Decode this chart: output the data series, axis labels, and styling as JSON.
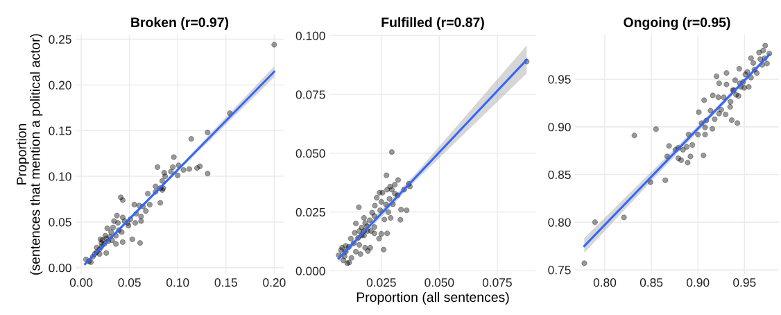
{
  "chart_data": [
    {
      "type": "scatter",
      "title": "Broken (r=0.97)",
      "ylabel": "Proportion\n(sentences that mention a political actor)",
      "grid": true,
      "tick_labels": true,
      "xlim": [
        -0.0058,
        0.2098
      ],
      "ylim": [
        -0.007,
        0.255
      ],
      "xticks": [
        {
          "value": 0,
          "label": "0.00"
        },
        {
          "value": 0.05,
          "label": "0.05"
        },
        {
          "value": 0.1,
          "label": "0.10"
        },
        {
          "value": 0.15,
          "label": "0.15"
        },
        {
          "value": 0.2,
          "label": "0.20"
        }
      ],
      "yticks": [
        {
          "value": 0,
          "label": "0.00"
        },
        {
          "value": 0.05,
          "label": "0.05"
        },
        {
          "value": 0.1,
          "label": "0.10"
        },
        {
          "value": 0.15,
          "label": "0.15"
        },
        {
          "value": 0.2,
          "label": "0.20"
        },
        {
          "value": 0.25,
          "label": "0.25"
        }
      ],
      "series": [
        {
          "color": "#000000",
          "x": [
            0.2,
            0.154,
            0.131,
            0.114,
            0.131,
            0.123,
            0.12,
            0.112,
            0.106,
            0.101,
            0.096,
            0.095,
            0.093,
            0.1,
            0.086,
            0.079,
            0.087,
            0.084,
            0.077,
            0.082,
            0.085,
            0.077,
            0.084,
            0.069,
            0.082,
            0.071,
            0.064,
            0.067,
            0.06,
            0.055,
            0.041,
            0.043,
            0.057,
            0.062,
            0.062,
            0.056,
            0.051,
            0.048,
            0.043,
            0.038,
            0.053,
            0.061,
            0.043,
            0.036,
            0.027,
            0.031,
            0.033,
            0.039,
            0.042,
            0.036,
            0.026,
            0.022,
            0.03,
            0.021,
            0.019,
            0.016,
            0.014,
            0.026,
            0.019,
            0.012,
            0.005,
            0.01,
            0.008,
            0.024,
            0.021,
            0.025,
            0.028,
            0.032,
            0.016,
            0.02,
            0.049,
            0.045,
            0.037,
            0.034
          ],
          "values": [
            0.244,
            0.169,
            0.148,
            0.141,
            0.103,
            0.111,
            0.109,
            0.108,
            0.107,
            0.112,
            0.121,
            0.11,
            0.105,
            0.101,
            0.104,
            0.11,
            0.1,
            0.095,
            0.089,
            0.087,
            0.087,
            0.083,
            0.085,
            0.081,
            0.071,
            0.069,
            0.067,
            0.062,
            0.068,
            0.069,
            0.077,
            0.074,
            0.059,
            0.056,
            0.051,
            0.049,
            0.053,
            0.049,
            0.055,
            0.049,
            0.031,
            0.027,
            0.028,
            0.026,
            0.043,
            0.039,
            0.044,
            0.041,
            0.039,
            0.035,
            0.032,
            0.03,
            0.034,
            0.023,
            0.02,
            0.017,
            0.015,
            0.016,
            0.015,
            0.012,
            0.009,
            0.006,
            0.007,
            0.026,
            0.027,
            0.035,
            0.029,
            0.03,
            0.022,
            0.031,
            0.046,
            0.051,
            0.057,
            0.051
          ]
        },
        {
          "type": "line",
          "color": "#3366ff",
          "x": [
            0.004,
            0.1,
            0.2
          ],
          "values": [
            0.004,
            0.1071,
            0.2145
          ],
          "lower": [
            0.002,
            0.1051,
            0.2085
          ],
          "upper": [
            0.006,
            0.1091,
            0.2205
          ]
        }
      ]
    },
    {
      "type": "scatter",
      "title": "Fulfilled (r=0.87)",
      "xlabel": "Proportion (all sentences)",
      "grid": true,
      "tick_labels": true,
      "xlim": [
        0.0026,
        0.0918
      ],
      "ylim": [
        -0.0014,
        0.1004
      ],
      "xticks": [
        {
          "value": 0.025,
          "label": "0.025"
        },
        {
          "value": 0.05,
          "label": "0.050"
        },
        {
          "value": 0.075,
          "label": "0.075"
        }
      ],
      "yticks": [
        {
          "value": 0,
          "label": "0.000"
        },
        {
          "value": 0.025,
          "label": "0.025"
        },
        {
          "value": 0.05,
          "label": "0.050"
        },
        {
          "value": 0.075,
          "label": "0.075"
        },
        {
          "value": 0.1,
          "label": "0.100"
        }
      ],
      "series": [
        {
          "color": "#000000",
          "x": [
            0.0877,
            0.0295,
            0.0272,
            0.0322,
            0.0308,
            0.0368,
            0.0373,
            0.0348,
            0.0288,
            0.0275,
            0.0295,
            0.0242,
            0.0255,
            0.0308,
            0.032,
            0.023,
            0.0285,
            0.025,
            0.027,
            0.03,
            0.0222,
            0.0153,
            0.0335,
            0.0359,
            0.0332,
            0.029,
            0.028,
            0.0245,
            0.021,
            0.022,
            0.0263,
            0.014,
            0.0175,
            0.02,
            0.018,
            0.0188,
            0.0165,
            0.0155,
            0.0135,
            0.0175,
            0.019,
            0.022,
            0.025,
            0.0275,
            0.024,
            0.0165,
            0.015,
            0.0118,
            0.0131,
            0.0155,
            0.018,
            0.0202,
            0.0192,
            0.026,
            0.014,
            0.016,
            0.0096,
            0.0109,
            0.0081,
            0.0076,
            0.0096,
            0.0066,
            0.0091,
            0.0086,
            0.0111,
            0.0103,
            0.0121,
            0.022,
            0.0205,
            0.0175
          ],
          "values": [
            0.089,
            0.0505,
            0.0406,
            0.0386,
            0.0366,
            0.037,
            0.0358,
            0.0345,
            0.0358,
            0.0345,
            0.0345,
            0.0332,
            0.0332,
            0.0328,
            0.0321,
            0.0311,
            0.0306,
            0.0293,
            0.0282,
            0.0283,
            0.0277,
            0.027,
            0.026,
            0.0257,
            0.0217,
            0.0225,
            0.0249,
            0.0257,
            0.0247,
            0.0233,
            0.0218,
            0.0201,
            0.0225,
            0.0215,
            0.0203,
            0.0189,
            0.0184,
            0.0169,
            0.0161,
            0.0169,
            0.0169,
            0.0186,
            0.0157,
            0.0159,
            0.0137,
            0.015,
            0.014,
            0.0137,
            0.0117,
            0.011,
            0.0098,
            0.0098,
            0.0084,
            0.009,
            0.0081,
            0.0071,
            0.0106,
            0.0101,
            0.0098,
            0.0088,
            0.0081,
            0.0066,
            0.0062,
            0.0044,
            0.0035,
            0.0032,
            0.0055,
            0.0159,
            0.0169,
            0.015
          ]
        },
        {
          "type": "line",
          "color": "#3366ff",
          "x": [
            0.0066,
            0.04,
            0.0877
          ],
          "values": [
            0.0052,
            0.04,
            0.0897
          ],
          "lower": [
            0.0037,
            0.0385,
            0.0839
          ],
          "upper": [
            0.0067,
            0.0415,
            0.0958
          ]
        }
      ]
    },
    {
      "type": "scatter",
      "title": "Ongoing (r=0.95)",
      "grid": true,
      "tick_labels": true,
      "xlim": [
        0.768,
        0.987
      ],
      "ylim": [
        0.7456,
        0.9967
      ],
      "xticks": [
        {
          "value": 0.8,
          "label": "0.80"
        },
        {
          "value": 0.85,
          "label": "0.85"
        },
        {
          "value": 0.9,
          "label": "0.90"
        },
        {
          "value": 0.95,
          "label": "0.95"
        }
      ],
      "yticks": [
        {
          "value": 0.75,
          "label": "0.75"
        },
        {
          "value": 0.8,
          "label": "0.80"
        },
        {
          "value": 0.85,
          "label": "0.85"
        },
        {
          "value": 0.9,
          "label": "0.90"
        },
        {
          "value": 0.95,
          "label": "0.95"
        }
      ],
      "series": [
        {
          "color": "#000000",
          "x": [
            0.778,
            0.7895,
            0.8206,
            0.8318,
            0.855,
            0.849,
            0.865,
            0.867,
            0.869,
            0.876,
            0.879,
            0.882,
            0.8788,
            0.884,
            0.888,
            0.89,
            0.892,
            0.889,
            0.894,
            0.9,
            0.901,
            0.906,
            0.9067,
            0.9077,
            0.9077,
            0.904,
            0.909,
            0.9135,
            0.916,
            0.9155,
            0.918,
            0.92,
            0.9228,
            0.9228,
            0.922,
            0.925,
            0.9297,
            0.9307,
            0.9307,
            0.9346,
            0.9363,
            0.9424,
            0.9277,
            0.9375,
            0.94,
            0.9436,
            0.946,
            0.9444,
            0.9485,
            0.951,
            0.9546,
            0.957,
            0.9608,
            0.9657,
            0.9723,
            0.97,
            0.9742,
            0.9767,
            0.967,
            0.9595,
            0.9632,
            0.953,
            0.9497,
            0.941,
            0.945,
            0.957,
            0.969,
            0.9718,
            0.935,
            0.9387
          ],
          "values": [
            0.757,
            0.8,
            0.805,
            0.891,
            0.8976,
            0.842,
            0.844,
            0.869,
            0.88,
            0.876,
            0.867,
            0.865,
            0.878,
            0.876,
            0.879,
            0.892,
            0.869,
            0.8625,
            0.881,
            0.892,
            0.9154,
            0.87,
            0.928,
            0.892,
            0.8995,
            0.904,
            0.9067,
            0.917,
            0.933,
            0.898,
            0.908,
            0.953,
            0.9457,
            0.914,
            0.931,
            0.918,
            0.913,
            0.9565,
            0.9445,
            0.921,
            0.907,
            0.904,
            0.931,
            0.9385,
            0.949,
            0.9325,
            0.942,
            0.961,
            0.947,
            0.955,
            0.942,
            0.972,
            0.96,
            0.978,
            0.9853,
            0.98,
            0.9665,
            0.977,
            0.971,
            0.967,
            0.9565,
            0.9577,
            0.941,
            0.9337,
            0.9457,
            0.9517,
            0.965,
            0.972,
            0.9264,
            0.9385
          ]
        },
        {
          "type": "line",
          "color": "#3366ff",
          "x": [
            0.778,
            0.9,
            0.9767
          ],
          "values": [
            0.775,
            0.8982,
            0.9757
          ],
          "lower": [
            0.7678,
            0.8952,
            0.9737
          ],
          "upper": [
            0.7834,
            0.9012,
            0.9777
          ]
        }
      ]
    }
  ]
}
